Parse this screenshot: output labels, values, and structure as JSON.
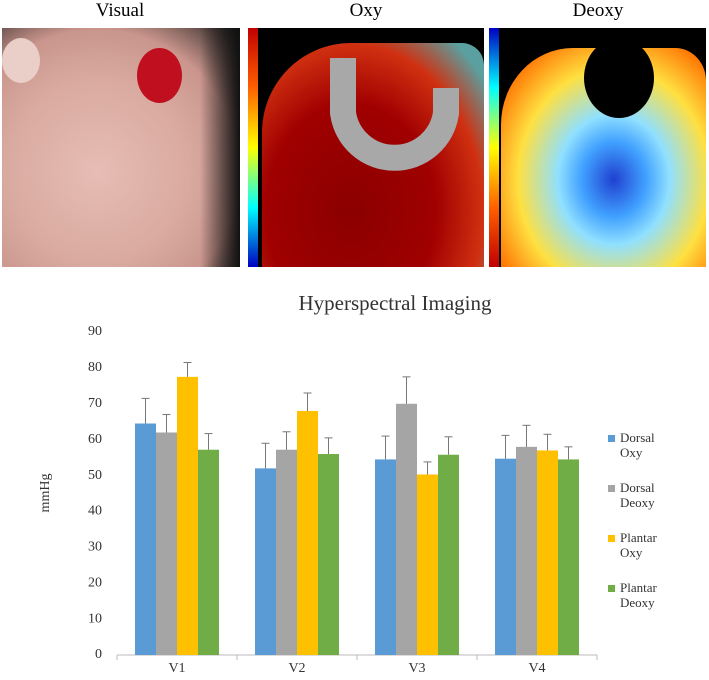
{
  "panels": [
    {
      "label": "Visual"
    },
    {
      "label": "Oxy"
    },
    {
      "label": "Deoxy"
    }
  ],
  "chart_data": {
    "type": "bar",
    "title": "Hyperspectral Imaging",
    "y_label": "mmHg",
    "categories": [
      "V1",
      "V2",
      "V3",
      "V4"
    ],
    "series": [
      {
        "name": "Dorsal Oxy",
        "color": "#5b9bd5",
        "values": [
          64.5,
          52,
          54.5,
          54.7
        ],
        "errors": [
          7,
          7,
          6.5,
          6.5
        ]
      },
      {
        "name": "Dorsal Deoxy",
        "color": "#a5a5a5",
        "values": [
          62,
          57.2,
          70,
          58
        ],
        "errors": [
          5,
          5,
          7.5,
          6
        ]
      },
      {
        "name": "Plantar Oxy",
        "color": "#ffc000",
        "values": [
          77.5,
          68,
          50.3,
          57
        ],
        "errors": [
          4,
          5,
          3.5,
          4.5
        ]
      },
      {
        "name": "Plantar Deoxy",
        "color": "#70ad47",
        "values": [
          57.2,
          56,
          55.8,
          54.5
        ],
        "errors": [
          4.5,
          4.5,
          5,
          3.5
        ]
      }
    ],
    "ylim": [
      0,
      90
    ],
    "yticks": [
      0,
      10,
      20,
      30,
      40,
      50,
      60,
      70,
      80,
      90
    ],
    "grid": false
  }
}
